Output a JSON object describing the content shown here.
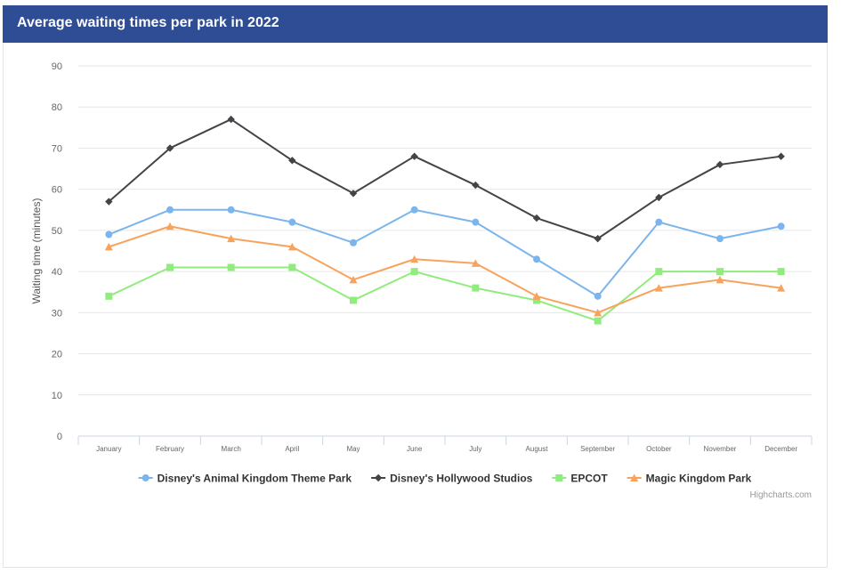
{
  "header": {
    "title": "Average waiting times per park in 2022"
  },
  "credit": "Highcharts.com",
  "chart_data": {
    "type": "line",
    "title": "Average waiting times per park in 2022",
    "ylabel": "Waiting time (minutes)",
    "xlabel": "",
    "ylim": [
      0,
      90
    ],
    "yticks": [
      0,
      10,
      20,
      30,
      40,
      50,
      60,
      70,
      80,
      90
    ],
    "grid": true,
    "legend": "bottom-center",
    "categories": [
      "January",
      "February",
      "March",
      "April",
      "May",
      "June",
      "July",
      "August",
      "September",
      "October",
      "November",
      "December"
    ],
    "series": [
      {
        "name": "Disney's Animal Kingdom Theme Park",
        "color": "#7cb5ec",
        "marker": "circle",
        "values": [
          49,
          55,
          55,
          52,
          47,
          55,
          52,
          43,
          34,
          52,
          48,
          51
        ]
      },
      {
        "name": "Disney's Hollywood Studios",
        "color": "#434348",
        "marker": "diamond",
        "values": [
          57,
          70,
          77,
          67,
          59,
          68,
          61,
          53,
          48,
          58,
          66,
          68
        ]
      },
      {
        "name": "EPCOT",
        "color": "#90ed7d",
        "marker": "square",
        "values": [
          34,
          41,
          41,
          41,
          33,
          40,
          36,
          33,
          28,
          40,
          40,
          40
        ]
      },
      {
        "name": "Magic Kingdom Park",
        "color": "#f7a35c",
        "marker": "triangle",
        "values": [
          46,
          51,
          48,
          46,
          38,
          43,
          42,
          34,
          30,
          36,
          38,
          36
        ]
      }
    ]
  }
}
